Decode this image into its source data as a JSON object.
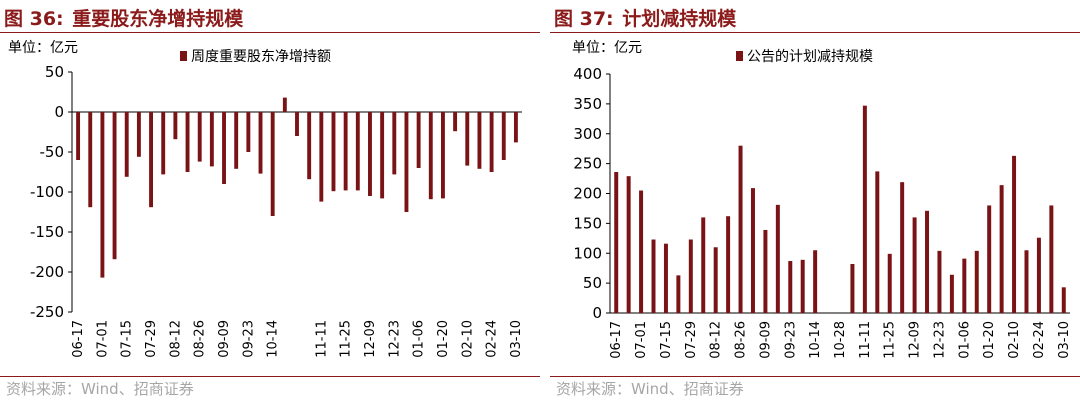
{
  "colors": {
    "accent": "#8b1a1a",
    "bar": "#7a1315",
    "source": "#a6a6a6"
  },
  "left": {
    "figure_label": "图 36:",
    "title": "重要股东净增持规模",
    "source": "资料来源：Wind、招商证券"
  },
  "right": {
    "figure_label": "图 37:",
    "title": "计划减持规模",
    "source": "资料来源：Wind、招商证券"
  },
  "chart_data": [
    {
      "type": "bar",
      "unit_label": "单位：亿元",
      "legend": "周度重要股东净增持额",
      "ylim": [
        -250,
        50
      ],
      "yticks": [
        50,
        0,
        -50,
        -100,
        -150,
        -200,
        -250
      ],
      "categories": [
        "06-17",
        "06-24",
        "07-01",
        "07-08",
        "07-15",
        "07-22",
        "07-29",
        "08-05",
        "08-12",
        "08-19",
        "08-26",
        "09-02",
        "09-09",
        "09-16",
        "09-23",
        "09-30",
        "10-14",
        "10-21",
        "10-28",
        "11-04",
        "11-11",
        "11-18",
        "11-25",
        "12-02",
        "12-09",
        "12-16",
        "12-23",
        "12-30",
        "01-06",
        "01-13",
        "01-20",
        "01-27",
        "02-10",
        "02-17",
        "02-24",
        "03-03",
        "03-10"
      ],
      "xtick_labels": [
        "06-17",
        "07-01",
        "07-15",
        "07-29",
        "08-12",
        "08-26",
        "09-09",
        "09-23",
        "10-14",
        "11-11",
        "11-25",
        "12-09",
        "12-23",
        "01-06",
        "01-20",
        "02-10",
        "02-24",
        "03-10"
      ],
      "series": [
        {
          "name": "周度重要股东净增持额",
          "values": [
            -60,
            -119,
            -207,
            -184,
            -81,
            -56,
            -119,
            -78,
            -34,
            -75,
            -62,
            -68,
            -90,
            -71,
            -50,
            -77,
            -130,
            18,
            -30,
            -84,
            -112,
            -99,
            -98,
            -98,
            -105,
            -108,
            -78,
            -125,
            -70,
            -109,
            -108,
            -24,
            -67,
            -71,
            -75,
            -60,
            -38
          ]
        }
      ],
      "grid": false
    },
    {
      "type": "bar",
      "unit_label": "单位：亿元",
      "legend": "公告的计划减持规模",
      "ylim": [
        0,
        400
      ],
      "yticks": [
        400,
        350,
        300,
        250,
        200,
        150,
        100,
        50,
        0
      ],
      "categories": [
        "06-17",
        "06-24",
        "07-01",
        "07-08",
        "07-15",
        "07-22",
        "07-29",
        "08-05",
        "08-12",
        "08-19",
        "08-26",
        "09-02",
        "09-09",
        "09-16",
        "09-23",
        "09-30",
        "10-14",
        "10-21",
        "10-28",
        "11-04",
        "11-11",
        "11-18",
        "11-25",
        "12-02",
        "12-09",
        "12-16",
        "12-23",
        "12-30",
        "01-06",
        "01-13",
        "01-20",
        "01-27",
        "02-10",
        "02-17",
        "02-24",
        "03-03",
        "03-10"
      ],
      "xtick_labels": [
        "06-17",
        "07-01",
        "07-15",
        "07-29",
        "08-12",
        "08-26",
        "09-09",
        "09-23",
        "10-14",
        "10-28",
        "11-11",
        "11-25",
        "12-09",
        "12-23",
        "01-06",
        "01-20",
        "02-10",
        "02-24",
        "03-10"
      ],
      "series": [
        {
          "name": "公告的计划减持规模",
          "values": [
            236,
            229,
            205,
            123,
            116,
            63,
            123,
            160,
            110,
            162,
            280,
            209,
            139,
            181,
            87,
            89,
            105,
            0,
            0,
            82,
            347,
            237,
            99,
            219,
            160,
            171,
            104,
            64,
            91,
            104,
            180,
            214,
            263,
            105,
            126,
            180,
            43
          ]
        }
      ],
      "grid": false
    }
  ]
}
